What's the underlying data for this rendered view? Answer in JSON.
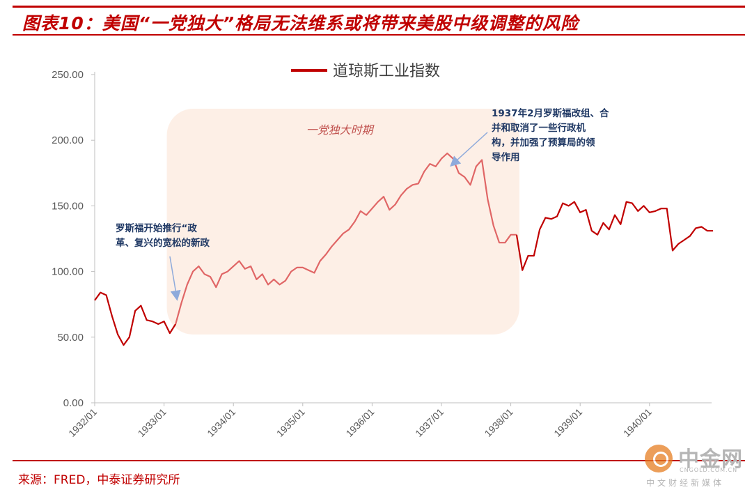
{
  "header": {
    "title": "图表10：美国“一党独大”格局无法维系或将带来美股中级调整的风险"
  },
  "footer": {
    "source": "来源：FRED，中泰证券研究所"
  },
  "watermark": {
    "name": "中金网",
    "site": "CNGOLD.COM.CN",
    "tagline": "中文财经新媒体"
  },
  "chart_data": {
    "type": "line",
    "title": "",
    "xlabel": "",
    "ylabel": "",
    "ylim": [
      0,
      250
    ],
    "xlim": [
      "1932/01",
      "1940/12"
    ],
    "grid": false,
    "legend_position": "top-center",
    "y_ticks": [
      "0.00",
      "50.00",
      "100.00",
      "150.00",
      "200.00",
      "250.00"
    ],
    "x_ticks": [
      "1932/01",
      "1933/01",
      "1934/01",
      "1935/01",
      "1936/01",
      "1937/01",
      "1938/01",
      "1939/01",
      "1940/01"
    ],
    "series": [
      {
        "name": "道琼斯工业指数",
        "color": "#c00000",
        "highlight_color": "#e06666",
        "points": [
          [
            "1932/01",
            78
          ],
          [
            "1932/02",
            84
          ],
          [
            "1932/03",
            82
          ],
          [
            "1932/04",
            66
          ],
          [
            "1932/05",
            52
          ],
          [
            "1932/06",
            44
          ],
          [
            "1932/07",
            50
          ],
          [
            "1932/08",
            70
          ],
          [
            "1932/09",
            74
          ],
          [
            "1932/10",
            63
          ],
          [
            "1932/11",
            62
          ],
          [
            "1932/12",
            60
          ],
          [
            "1933/01",
            62
          ],
          [
            "1933/02",
            53
          ],
          [
            "1933/03",
            60
          ],
          [
            "1933/04",
            76
          ],
          [
            "1933/05",
            90
          ],
          [
            "1933/06",
            100
          ],
          [
            "1933/07",
            104
          ],
          [
            "1933/08",
            98
          ],
          [
            "1933/09",
            96
          ],
          [
            "1933/10",
            88
          ],
          [
            "1933/11",
            98
          ],
          [
            "1933/12",
            100
          ],
          [
            "1934/01",
            104
          ],
          [
            "1934/02",
            108
          ],
          [
            "1934/03",
            102
          ],
          [
            "1934/04",
            104
          ],
          [
            "1934/05",
            94
          ],
          [
            "1934/06",
            98
          ],
          [
            "1934/07",
            90
          ],
          [
            "1934/08",
            94
          ],
          [
            "1934/09",
            90
          ],
          [
            "1934/10",
            93
          ],
          [
            "1934/11",
            100
          ],
          [
            "1934/12",
            103
          ],
          [
            "1935/01",
            103
          ],
          [
            "1935/02",
            101
          ],
          [
            "1935/03",
            99
          ],
          [
            "1935/04",
            108
          ],
          [
            "1935/05",
            113
          ],
          [
            "1935/06",
            119
          ],
          [
            "1935/07",
            124
          ],
          [
            "1935/08",
            129
          ],
          [
            "1935/09",
            132
          ],
          [
            "1935/10",
            138
          ],
          [
            "1935/11",
            146
          ],
          [
            "1935/12",
            143
          ],
          [
            "1936/01",
            148
          ],
          [
            "1936/02",
            153
          ],
          [
            "1936/03",
            157
          ],
          [
            "1936/04",
            147
          ],
          [
            "1936/05",
            151
          ],
          [
            "1936/06",
            158
          ],
          [
            "1936/07",
            163
          ],
          [
            "1936/08",
            166
          ],
          [
            "1936/09",
            167
          ],
          [
            "1936/10",
            176
          ],
          [
            "1936/11",
            182
          ],
          [
            "1936/12",
            180
          ],
          [
            "1937/01",
            186
          ],
          [
            "1937/02",
            190
          ],
          [
            "1937/03",
            186
          ],
          [
            "1937/04",
            175
          ],
          [
            "1937/05",
            172
          ],
          [
            "1937/06",
            166
          ],
          [
            "1937/07",
            180
          ],
          [
            "1937/08",
            185
          ],
          [
            "1937/09",
            155
          ],
          [
            "1937/10",
            135
          ],
          [
            "1937/11",
            122
          ],
          [
            "1937/12",
            122
          ],
          [
            "1938/01",
            128
          ],
          [
            "1938/02",
            128
          ],
          [
            "1938/03",
            101
          ],
          [
            "1938/04",
            112
          ],
          [
            "1938/05",
            112
          ],
          [
            "1938/06",
            132
          ],
          [
            "1938/07",
            141
          ],
          [
            "1938/08",
            140
          ],
          [
            "1938/09",
            142
          ],
          [
            "1938/10",
            152
          ],
          [
            "1938/11",
            150
          ],
          [
            "1938/12",
            153
          ],
          [
            "1939/01",
            145
          ],
          [
            "1939/02",
            147
          ],
          [
            "1939/03",
            131
          ],
          [
            "1939/04",
            128
          ],
          [
            "1939/05",
            137
          ],
          [
            "1939/06",
            132
          ],
          [
            "1939/07",
            143
          ],
          [
            "1939/08",
            136
          ],
          [
            "1939/09",
            153
          ],
          [
            "1939/10",
            152
          ],
          [
            "1939/11",
            146
          ],
          [
            "1939/12",
            150
          ],
          [
            "1940/01",
            145
          ],
          [
            "1940/02",
            146
          ],
          [
            "1940/03",
            148
          ],
          [
            "1940/04",
            148
          ],
          [
            "1940/05",
            116
          ],
          [
            "1940/06",
            121
          ],
          [
            "1940/07",
            124
          ],
          [
            "1940/08",
            127
          ],
          [
            "1940/09",
            133
          ],
          [
            "1940/10",
            134
          ],
          [
            "1940/11",
            131
          ],
          [
            "1940/12",
            131
          ]
        ]
      }
    ],
    "highlight_period": {
      "label": "一党独大时期",
      "start": "1933/01",
      "end": "1938/02",
      "color": "#fdefe6"
    },
    "annotations": [
      {
        "lines": [
          "罗斯福开始推行“政",
          "革、复兴的宽松的新政"
        ],
        "point": [
          "1933/03",
          77
        ]
      },
      {
        "lines": [
          "1937年2月罗斯福改组、合",
          "并和取消了一些行政机",
          "构，并加强了预算局的领",
          "导作用"
        ],
        "point": [
          "1937/02",
          182
        ]
      }
    ]
  }
}
